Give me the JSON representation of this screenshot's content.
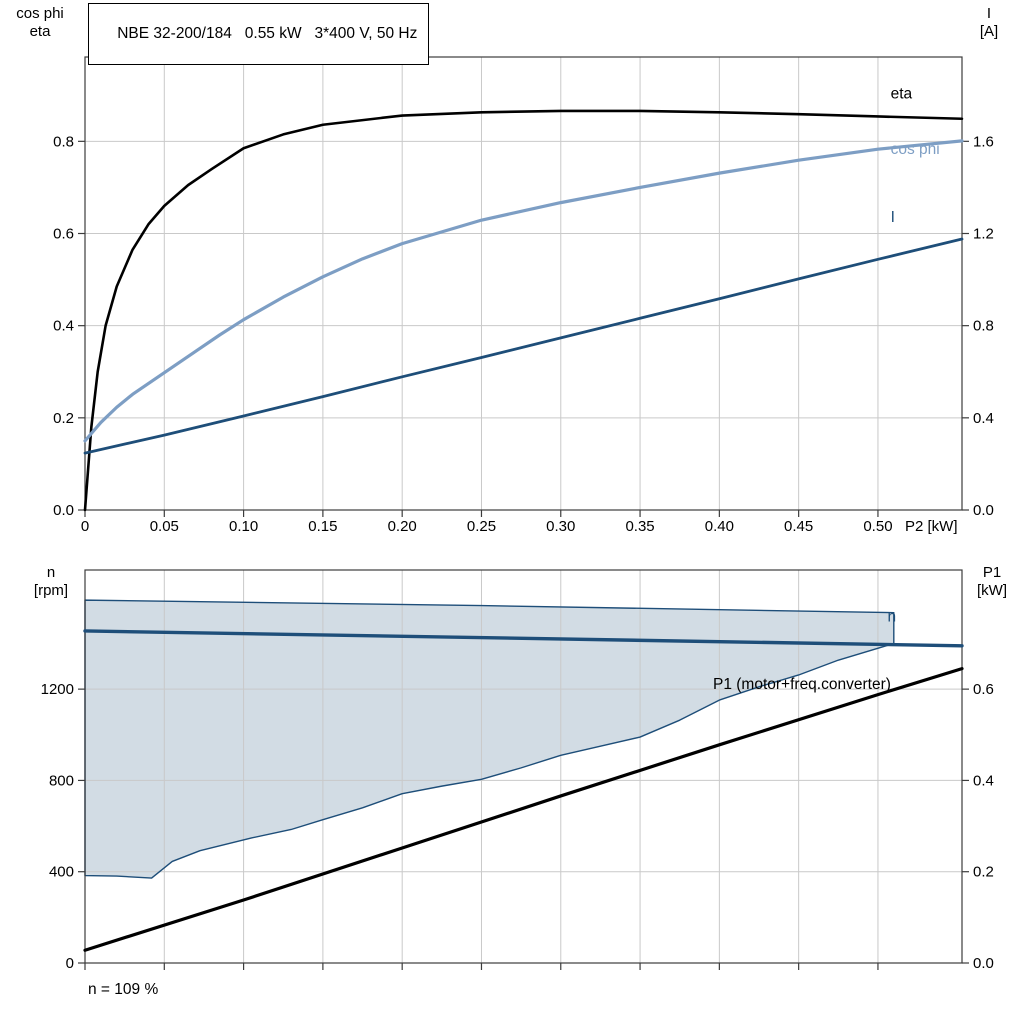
{
  "chart_data": [
    {
      "type": "line",
      "name": "motor-performance-curves",
      "title": "NBE 32-200/184   0.55 kW   3*400 V, 50 Hz",
      "x_axis": {
        "min": 0,
        "max": 0.553,
        "ticks": [
          0,
          0.05,
          0.1,
          0.15,
          0.2,
          0.25,
          0.3,
          0.35,
          0.4,
          0.45,
          0.5
        ],
        "tick_labels": [
          "0",
          "0.05",
          "0.10",
          "0.15",
          "0.20",
          "0.25",
          "0.30",
          "0.35",
          "0.40",
          "0.45",
          "0.50"
        ],
        "unit_label": "P2 [kW]"
      },
      "left_axis": {
        "min": 0,
        "max": 0.983,
        "ticks": [
          0,
          0.2,
          0.4,
          0.6,
          0.8
        ],
        "tick_labels": [
          "0.0",
          "0.2",
          "0.4",
          "0.6",
          "0.8"
        ],
        "title_lines": [
          "cos phi",
          "eta"
        ]
      },
      "right_axis": {
        "min": 0,
        "max": 1.966,
        "ticks": [
          0,
          0.4,
          0.8,
          1.2,
          1.6
        ],
        "tick_labels": [
          "0.0",
          "0.4",
          "0.8",
          "1.2",
          "1.6"
        ],
        "title_lines": [
          "I",
          "[A]"
        ]
      },
      "grid": true,
      "series": [
        {
          "name": "eta",
          "axis": "left",
          "color": "#000000",
          "width": 2.6,
          "x": [
            0,
            0.004,
            0.008,
            0.013,
            0.02,
            0.03,
            0.04,
            0.05,
            0.065,
            0.08,
            0.1,
            0.125,
            0.15,
            0.2,
            0.25,
            0.3,
            0.35,
            0.4,
            0.45,
            0.5,
            0.553
          ],
          "y": [
            0,
            0.18,
            0.3,
            0.4,
            0.485,
            0.565,
            0.62,
            0.66,
            0.705,
            0.74,
            0.785,
            0.815,
            0.836,
            0.856,
            0.863,
            0.866,
            0.866,
            0.863,
            0.859,
            0.854,
            0.849
          ],
          "label": {
            "text": "eta",
            "x": 0.508,
            "y": 0.893,
            "anchor": "start",
            "color": "#000000"
          }
        },
        {
          "name": "cos phi",
          "axis": "left",
          "color": "#7d9ec4",
          "width": 3.2,
          "x": [
            0,
            0.01,
            0.02,
            0.03,
            0.05,
            0.07,
            0.085,
            0.1,
            0.125,
            0.15,
            0.175,
            0.2,
            0.25,
            0.3,
            0.35,
            0.4,
            0.45,
            0.5,
            0.553
          ],
          "y": [
            0.15,
            0.19,
            0.223,
            0.251,
            0.298,
            0.345,
            0.38,
            0.413,
            0.462,
            0.506,
            0.545,
            0.578,
            0.629,
            0.667,
            0.7,
            0.731,
            0.759,
            0.783,
            0.801
          ],
          "label": {
            "text": "cos phi",
            "x": 0.508,
            "y": 0.772,
            "anchor": "start",
            "color": "#7d9ec4"
          }
        },
        {
          "name": "I",
          "axis": "right",
          "color": "#1e4e79",
          "width": 2.8,
          "x": [
            0,
            0.05,
            0.1,
            0.15,
            0.2,
            0.25,
            0.3,
            0.35,
            0.4,
            0.45,
            0.5,
            0.553
          ],
          "y": [
            0.247,
            0.325,
            0.408,
            0.492,
            0.578,
            0.662,
            0.747,
            0.832,
            0.917,
            1.003,
            1.088,
            1.176
          ],
          "label": {
            "text": "I",
            "x": 0.508,
            "y": 1.25,
            "anchor": "start",
            "color": "#1e4e79"
          }
        }
      ]
    },
    {
      "type": "line+area",
      "name": "speed-and-input-power-curves",
      "x_axis": {
        "min": 0,
        "max": 0.553,
        "ticks": [
          0,
          0.05,
          0.1,
          0.15,
          0.2,
          0.25,
          0.3,
          0.35,
          0.4,
          0.45,
          0.5
        ],
        "tick_labels": null,
        "unit_label": null
      },
      "left_axis": {
        "min": 0,
        "max": 1722,
        "ticks": [
          0,
          400,
          800,
          1200
        ],
        "tick_labels": [
          "0",
          "400",
          "800",
          "1200"
        ],
        "title_lines": [
          "n",
          "[rpm]"
        ]
      },
      "right_axis": {
        "min": 0,
        "max": 0.861,
        "ticks": [
          0,
          0.2,
          0.4,
          0.6
        ],
        "tick_labels": [
          "0.0",
          "0.2",
          "0.4",
          "0.6"
        ],
        "title_lines": [
          "P1",
          "[kW]"
        ]
      },
      "grid": true,
      "area": {
        "name": "speed-duty-range",
        "axis": "left",
        "fill": "rgba(30,78,121,0.20)",
        "outline_color": "#1e4e79",
        "outline_width": 1.4,
        "upper": {
          "x": [
            0,
            0.25,
            0.51
          ],
          "y": [
            1590,
            1566,
            1535
          ]
        },
        "lower": {
          "x": [
            0,
            0.02,
            0.042,
            0.055,
            0.0725,
            0.105,
            0.13,
            0.15,
            0.175,
            0.2,
            0.225,
            0.25,
            0.275,
            0.3,
            0.325,
            0.35,
            0.375,
            0.4,
            0.425,
            0.45,
            0.475,
            0.51
          ],
          "y": [
            383,
            381,
            372,
            445,
            492,
            548,
            585,
            628,
            680,
            742,
            775,
            805,
            855,
            910,
            950,
            990,
            1064,
            1152,
            1210,
            1262,
            1327,
            1400
          ]
        }
      },
      "series": [
        {
          "name": "n",
          "axis": "left",
          "color": "#1e4e79",
          "width": 3.4,
          "x": [
            0,
            0.553
          ],
          "y": [
            1455,
            1390
          ],
          "label": {
            "text": "n",
            "x": 0.506,
            "y": 1496,
            "anchor": "start",
            "color": "#1e4e79"
          }
        },
        {
          "name": "P1 (motor+freq.converter)",
          "axis": "right",
          "color": "#000000",
          "width": 3.2,
          "x": [
            0,
            0.1,
            0.2,
            0.3,
            0.4,
            0.5,
            0.553
          ],
          "y": [
            0.028,
            0.138,
            0.252,
            0.366,
            0.478,
            0.588,
            0.645
          ],
          "label": {
            "text": "P1 (motor+freq.converter)",
            "x": 0.396,
            "y": 0.6,
            "anchor": "start",
            "color": "#000000"
          }
        }
      ],
      "footnote": "n = 109 %"
    }
  ]
}
